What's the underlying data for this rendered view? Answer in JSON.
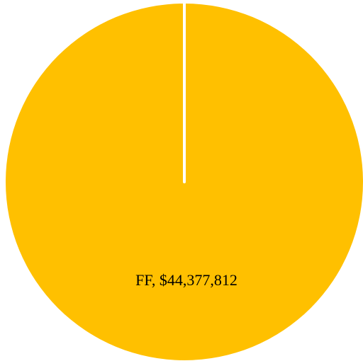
{
  "chart_data": {
    "type": "pie",
    "categories": [
      "FF"
    ],
    "values": [
      44377812
    ],
    "value_labels": [
      "FF, $44,377,812"
    ],
    "colors": [
      "#ffc000"
    ]
  }
}
